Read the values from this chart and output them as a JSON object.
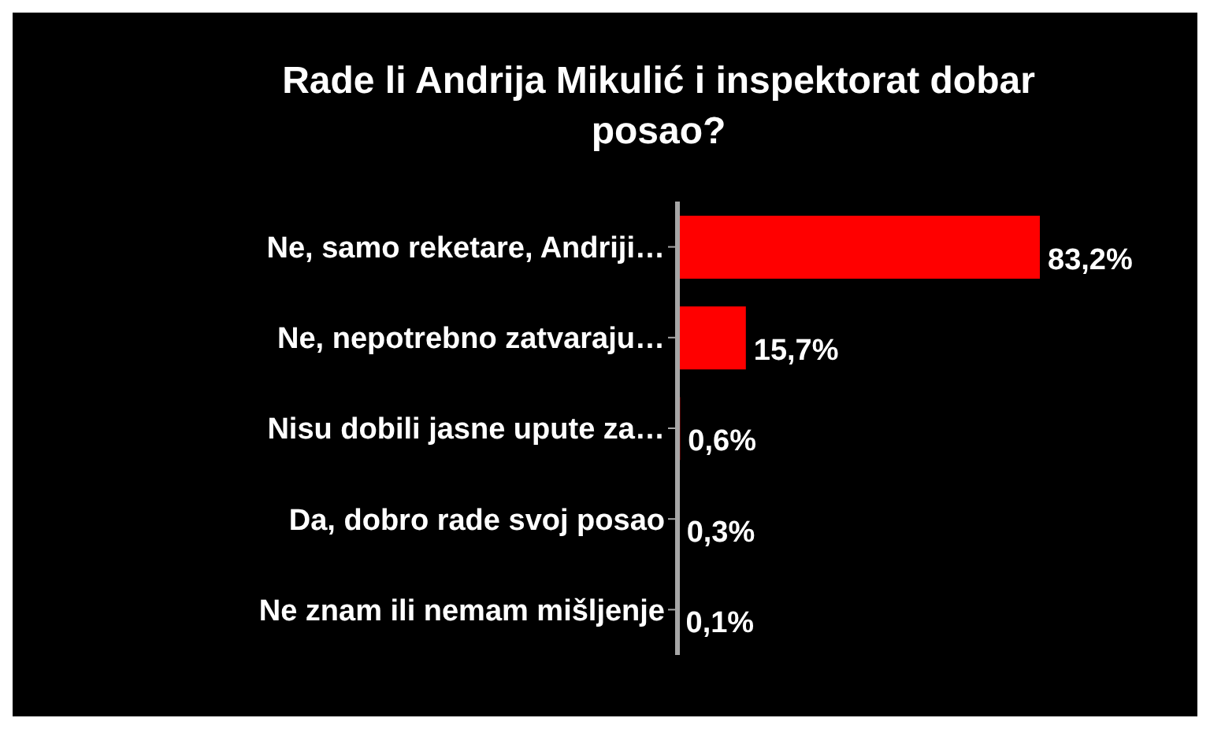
{
  "chart_data": {
    "type": "bar",
    "orientation": "horizontal",
    "title": "Rade li Andrija Mikulić i inspektorat dobar posao?",
    "categories": [
      "Ne, samo reketare, Andriji…",
      "Ne, nepotrebno zatvaraju…",
      "Nisu dobili jasne upute za…",
      "Da, dobro rade svoj posao",
      "Ne znam ili nemam mišljenje"
    ],
    "values": [
      83.2,
      15.7,
      0.6,
      0.3,
      0.1
    ],
    "value_labels": [
      "83,2%",
      "15,7%",
      "0,6%",
      "0,3%",
      "0,1%"
    ],
    "color": "#ff0000"
  }
}
